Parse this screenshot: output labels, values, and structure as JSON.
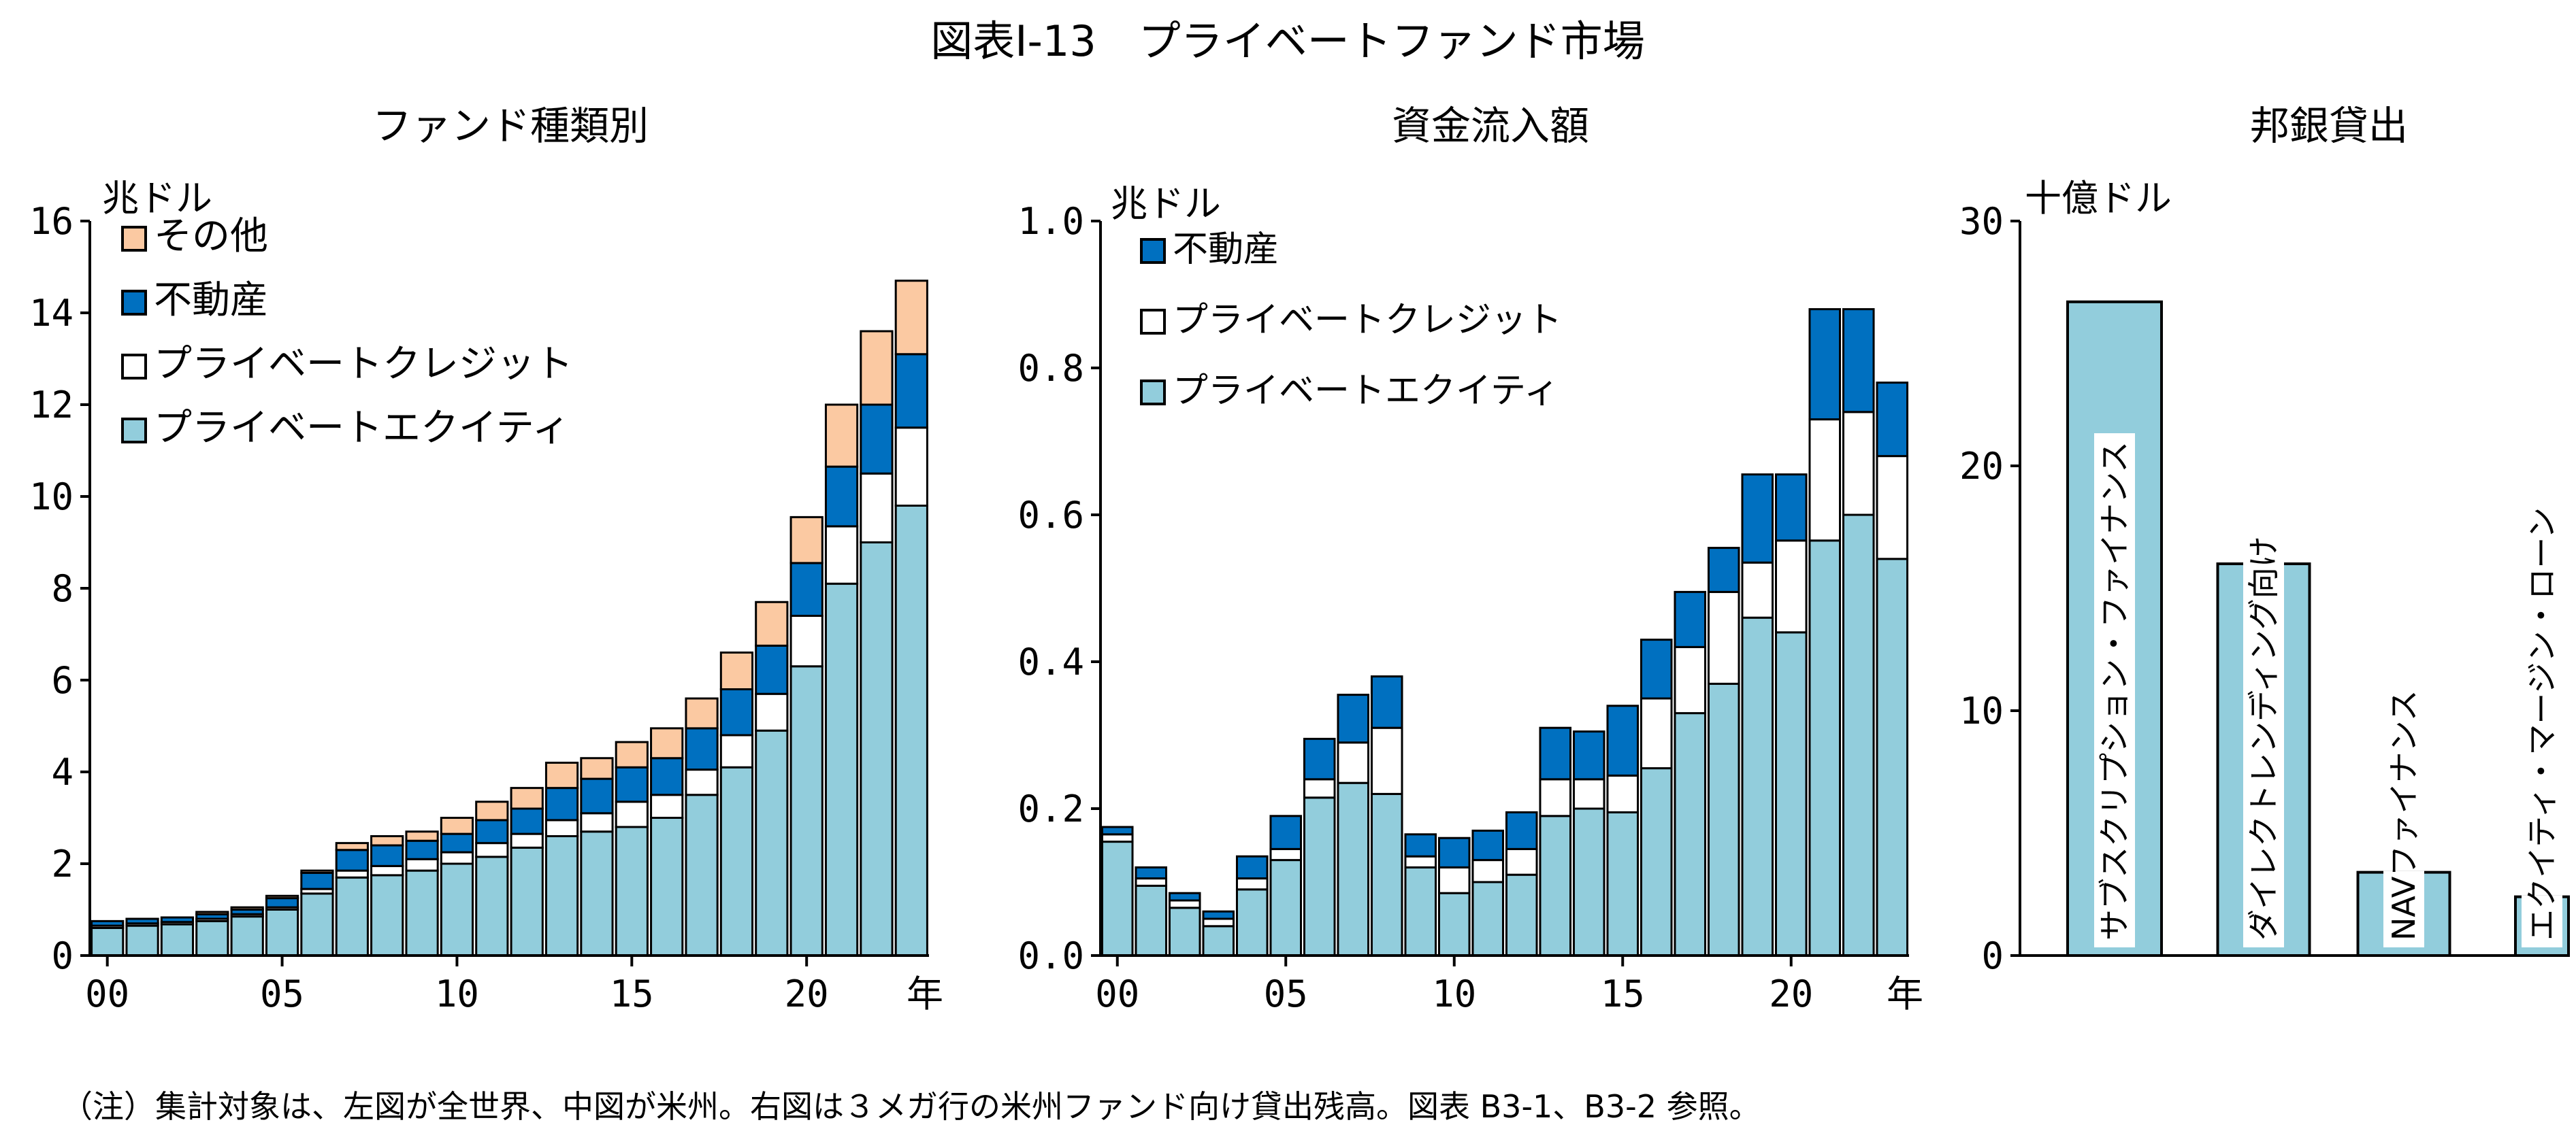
{
  "figure": {
    "title": "図表Ⅰ-13　プライベートファンド市場",
    "note": "（注）集計対象は、左図が全世界、中図が米州。右図は３メガ行の米州ファンド向け貸出残高。図表 B3-1、B3-2 参照。"
  },
  "colors": {
    "private_equity": "#92CDDC",
    "private_credit": "#FFFFFF",
    "real_estate": "#0070C0",
    "other": "#FBC9A2",
    "bank_loan": "#92CDDC",
    "outline": "#000000"
  },
  "chart_data": [
    {
      "id": "left",
      "type": "bar",
      "stacked": true,
      "title": "ファンド種類別",
      "ylabel": "兆ドル",
      "xlabel": "年",
      "ylim": [
        0,
        16
      ],
      "yticks": [
        0,
        2,
        4,
        6,
        8,
        10,
        12,
        14,
        16
      ],
      "ytick_labels": [
        "0",
        "2",
        "4",
        "6",
        "8",
        "10",
        "12",
        "14",
        "16"
      ],
      "xtick_labels": [
        "00",
        "05",
        "10",
        "15",
        "20"
      ],
      "xtick_years": [
        2000,
        2005,
        2010,
        2015,
        2020
      ],
      "x": [
        2000,
        2001,
        2002,
        2003,
        2004,
        2005,
        2006,
        2007,
        2008,
        2009,
        2010,
        2011,
        2012,
        2013,
        2014,
        2015,
        2016,
        2017,
        2018,
        2019,
        2020,
        2021,
        2022,
        2023
      ],
      "legend_position": "top-left",
      "series": [
        {
          "name": "プライベートエクイティ",
          "color_key": "private_equity",
          "values": [
            0.6,
            0.65,
            0.68,
            0.75,
            0.85,
            1.0,
            1.35,
            1.7,
            1.75,
            1.85,
            2.0,
            2.15,
            2.35,
            2.6,
            2.7,
            2.8,
            3.0,
            3.5,
            4.1,
            4.9,
            6.3,
            8.1,
            9.0,
            9.8
          ]
        },
        {
          "name": "プライベートクレジット",
          "color_key": "private_credit",
          "values": [
            0.05,
            0.05,
            0.05,
            0.05,
            0.05,
            0.05,
            0.1,
            0.15,
            0.2,
            0.25,
            0.25,
            0.3,
            0.3,
            0.35,
            0.4,
            0.55,
            0.5,
            0.55,
            0.7,
            0.8,
            1.1,
            1.25,
            1.5,
            1.7
          ]
        },
        {
          "name": "不動産",
          "color_key": "real_estate",
          "values": [
            0.1,
            0.1,
            0.1,
            0.1,
            0.1,
            0.2,
            0.35,
            0.45,
            0.45,
            0.4,
            0.4,
            0.5,
            0.55,
            0.7,
            0.75,
            0.75,
            0.8,
            0.9,
            1.0,
            1.05,
            1.15,
            1.3,
            1.5,
            1.6
          ]
        },
        {
          "name": "その他",
          "color_key": "other",
          "values": [
            0.0,
            0.0,
            0.0,
            0.05,
            0.05,
            0.05,
            0.05,
            0.15,
            0.2,
            0.2,
            0.35,
            0.4,
            0.45,
            0.55,
            0.45,
            0.55,
            0.65,
            0.65,
            0.8,
            0.95,
            1.0,
            1.35,
            1.6,
            1.6
          ]
        }
      ]
    },
    {
      "id": "middle",
      "type": "bar",
      "stacked": true,
      "title": "資金流入額",
      "ylabel": "兆ドル",
      "xlabel": "年",
      "ylim": [
        0,
        1.0
      ],
      "yticks": [
        0,
        0.2,
        0.4,
        0.6,
        0.8,
        1.0
      ],
      "ytick_labels": [
        "0.0",
        "0.2",
        "0.4",
        "0.6",
        "0.8",
        "1.0"
      ],
      "xtick_labels": [
        "00",
        "05",
        "10",
        "15",
        "20"
      ],
      "xtick_years": [
        2000,
        2005,
        2010,
        2015,
        2020
      ],
      "x": [
        2000,
        2001,
        2002,
        2003,
        2004,
        2005,
        2006,
        2007,
        2008,
        2009,
        2010,
        2011,
        2012,
        2013,
        2014,
        2015,
        2016,
        2017,
        2018,
        2019,
        2020,
        2021,
        2022,
        2023
      ],
      "legend_position": "top-left",
      "series": [
        {
          "name": "プライベートエクイティ",
          "color_key": "private_equity",
          "values": [
            0.155,
            0.095,
            0.065,
            0.04,
            0.09,
            0.13,
            0.215,
            0.235,
            0.22,
            0.12,
            0.085,
            0.1,
            0.11,
            0.19,
            0.2,
            0.195,
            0.255,
            0.33,
            0.37,
            0.46,
            0.44,
            0.565,
            0.6,
            0.54
          ]
        },
        {
          "name": "プライベートクレジット",
          "color_key": "private_credit",
          "values": [
            0.01,
            0.01,
            0.01,
            0.01,
            0.015,
            0.015,
            0.025,
            0.055,
            0.09,
            0.015,
            0.035,
            0.03,
            0.035,
            0.05,
            0.04,
            0.05,
            0.095,
            0.09,
            0.125,
            0.075,
            0.125,
            0.165,
            0.14,
            0.14
          ]
        },
        {
          "name": "不動産",
          "color_key": "real_estate",
          "values": [
            0.01,
            0.015,
            0.01,
            0.01,
            0.03,
            0.045,
            0.055,
            0.065,
            0.07,
            0.03,
            0.04,
            0.04,
            0.05,
            0.07,
            0.065,
            0.095,
            0.08,
            0.075,
            0.06,
            0.12,
            0.09,
            0.15,
            0.14,
            0.1
          ]
        }
      ]
    },
    {
      "id": "right",
      "type": "bar",
      "title": "邦銀貸出",
      "ylabel": "十億ドル",
      "ylim": [
        0,
        30
      ],
      "yticks": [
        0,
        10,
        20,
        30
      ],
      "ytick_labels": [
        "0",
        "10",
        "20",
        "30"
      ],
      "color_key": "bank_loan",
      "categories": [
        "サブスクリプション・ファイナンス",
        "ダイレクトレンディング向け",
        "NAVファイナンス",
        "エクイティ・マージン・ローン"
      ],
      "values": [
        26.7,
        16.0,
        3.4,
        2.4
      ]
    }
  ]
}
